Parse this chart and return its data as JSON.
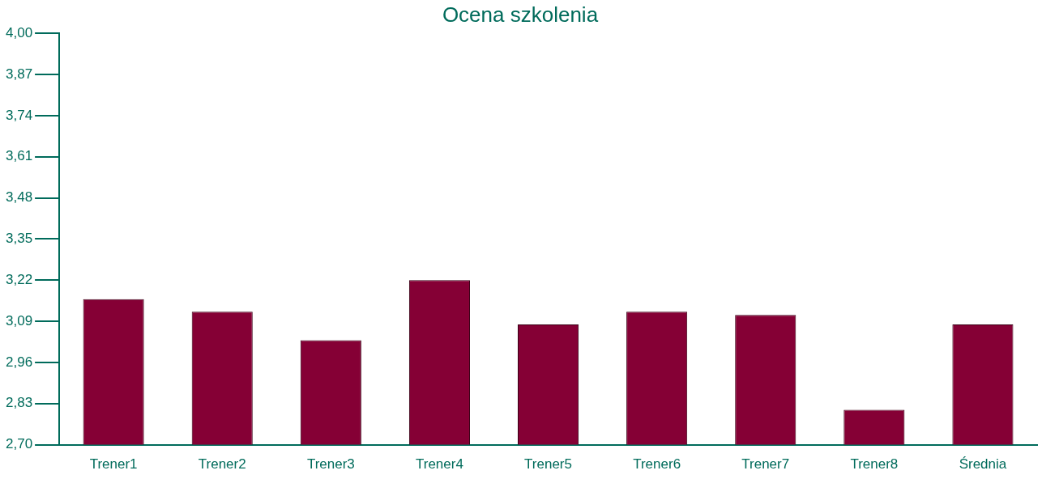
{
  "chart_data": {
    "type": "bar",
    "title": "Ocena szkolenia",
    "categories": [
      "Trener1",
      "Trener2",
      "Trener3",
      "Trener4",
      "Trener5",
      "Trener6",
      "Trener7",
      "Trener8",
      "Średnia"
    ],
    "values": [
      3.16,
      3.12,
      3.03,
      3.22,
      3.08,
      3.12,
      3.11,
      2.81,
      3.08
    ],
    "color": "#850035",
    "ylim": [
      2.7,
      4.0
    ],
    "yticks": [
      {
        "value": 2.7,
        "label": "2,70"
      },
      {
        "value": 2.83,
        "label": "2,83"
      },
      {
        "value": 2.96,
        "label": "2,96"
      },
      {
        "value": 3.09,
        "label": "3,09"
      },
      {
        "value": 3.22,
        "label": "3,22"
      },
      {
        "value": 3.35,
        "label": "3,35"
      },
      {
        "value": 3.48,
        "label": "3,48"
      },
      {
        "value": 3.61,
        "label": "3,61"
      },
      {
        "value": 3.74,
        "label": "3,74"
      },
      {
        "value": 3.87,
        "label": "3,87"
      },
      {
        "value": 4.0,
        "label": "4,00"
      }
    ],
    "grid": false,
    "legend": false
  }
}
